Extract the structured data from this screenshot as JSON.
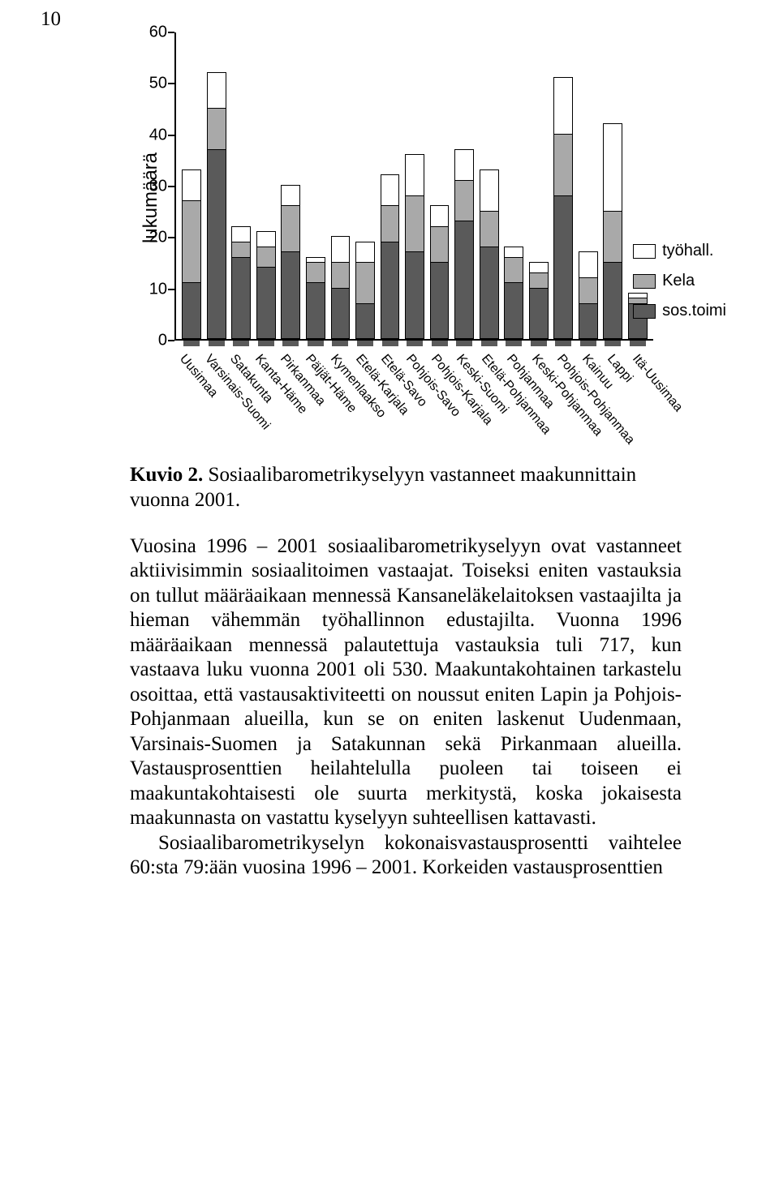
{
  "page_number": "10",
  "chart": {
    "type": "stacked-bar",
    "y_label": "lukumäärä",
    "y_ticks": [
      0,
      10,
      20,
      30,
      40,
      50,
      60
    ],
    "ylim": [
      0,
      60
    ],
    "bar_border_color": "#000000",
    "background_color": "#ffffff",
    "tick_fontsize": 20,
    "label_fontsize": 24,
    "x_label_fontsize": 16,
    "x_label_rotation_deg": 50,
    "series": [
      {
        "key": "sos_toimi",
        "label": "sos.toimi",
        "color": "#5a5a5a"
      },
      {
        "key": "kela",
        "label": "Kela",
        "color": "#a9a9a9"
      },
      {
        "key": "tyohall",
        "label": "työhall.",
        "color": "#ffffff"
      }
    ],
    "categories": [
      {
        "label": "Uusimaa",
        "values": {
          "sos_toimi": 11,
          "kela": 16,
          "tyohall": 6
        }
      },
      {
        "label": "Varsinais-Suomi",
        "values": {
          "sos_toimi": 37,
          "kela": 8,
          "tyohall": 7
        }
      },
      {
        "label": "Satakunta",
        "values": {
          "sos_toimi": 16,
          "kela": 3,
          "tyohall": 3
        }
      },
      {
        "label": "Kanta-Häme",
        "values": {
          "sos_toimi": 14,
          "kela": 4,
          "tyohall": 3
        }
      },
      {
        "label": "Pirkanmaa",
        "values": {
          "sos_toimi": 17,
          "kela": 9,
          "tyohall": 4
        }
      },
      {
        "label": "Päijät-Häme",
        "values": {
          "sos_toimi": 11,
          "kela": 4,
          "tyohall": 1
        }
      },
      {
        "label": "Kymenlaakso",
        "values": {
          "sos_toimi": 10,
          "kela": 5,
          "tyohall": 5
        }
      },
      {
        "label": "Etelä-Karjala",
        "values": {
          "sos_toimi": 7,
          "kela": 8,
          "tyohall": 4
        }
      },
      {
        "label": "Etelä-Savo",
        "values": {
          "sos_toimi": 19,
          "kela": 7,
          "tyohall": 6
        }
      },
      {
        "label": "Pohjois-Savo",
        "values": {
          "sos_toimi": 17,
          "kela": 11,
          "tyohall": 8
        }
      },
      {
        "label": "Pohjois-Karjala",
        "values": {
          "sos_toimi": 15,
          "kela": 7,
          "tyohall": 4
        }
      },
      {
        "label": "Keski-Suomi",
        "values": {
          "sos_toimi": 23,
          "kela": 8,
          "tyohall": 6
        }
      },
      {
        "label": "Etelä-Pohjanmaa",
        "values": {
          "sos_toimi": 18,
          "kela": 7,
          "tyohall": 8
        }
      },
      {
        "label": "Pohjanmaa",
        "values": {
          "sos_toimi": 11,
          "kela": 5,
          "tyohall": 2
        }
      },
      {
        "label": "Keski-Pohjanmaa",
        "values": {
          "sos_toimi": 10,
          "kela": 3,
          "tyohall": 2
        }
      },
      {
        "label": "Pohjois-Pohjanmaa",
        "values": {
          "sos_toimi": 28,
          "kela": 12,
          "tyohall": 11
        }
      },
      {
        "label": "Kainuu",
        "values": {
          "sos_toimi": 7,
          "kela": 5,
          "tyohall": 5
        }
      },
      {
        "label": "Lappi",
        "values": {
          "sos_toimi": 15,
          "kela": 10,
          "tyohall": 17
        }
      },
      {
        "label": "Itä-Uusimaa",
        "values": {
          "sos_toimi": 7,
          "kela": 1,
          "tyohall": 1
        }
      }
    ],
    "legend_position": "right"
  },
  "caption": {
    "label": "Kuvio 2.",
    "text": "Sosiaalibarometrikyselyyn vastanneet maakunnittain vuonna 2001."
  },
  "paragraphs": [
    "Vuosina 1996 – 2001 sosiaalibarometrikyselyyn ovat vastanneet aktiivisimmin sosiaalitoimen vastaajat. Toiseksi eniten vastauksia on tullut määräaikaan mennessä Kansaneläkelaitoksen vastaajilta ja hieman vähemmän työhallinnon edustajilta. Vuonna 1996 määräaikaan mennessä palautettuja vastauksia tuli 717, kun vastaava luku vuonna 2001 oli 530. Maakuntakohtainen tarkastelu osoittaa, että vastausaktiviteetti on noussut eniten Lapin ja Pohjois-Pohjanmaan alueilla, kun se on eniten laskenut Uudenmaan, Varsinais-Suomen ja Satakunnan sekä Pirkanmaan alueilla. Vastausprosenttien heilahtelulla puoleen tai toiseen ei maakuntakohtaisesti ole suurta merkitystä, koska jokaisesta maakunnasta on vastattu kyselyyn suhteellisen kattavasti.",
    "Sosiaalibarometrikyselyn kokonaisvastausprosentti vaihtelee 60:sta 79:ään vuosina 1996 – 2001. Korkeiden vastausprosenttien"
  ]
}
